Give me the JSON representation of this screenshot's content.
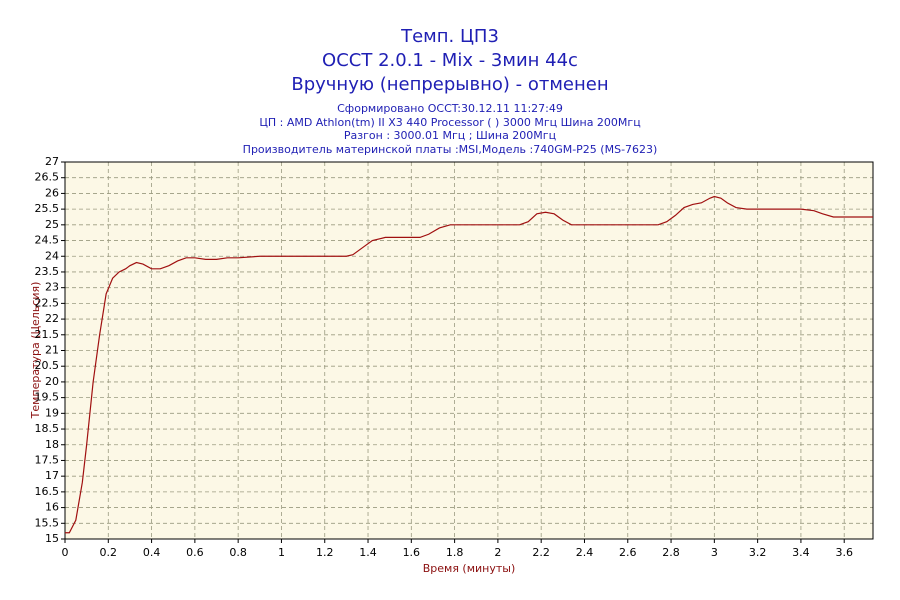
{
  "chart_data": {
    "type": "line",
    "title": [
      "Темп. ЦП3",
      "OCCT 2.0.1 - Mix - 3мин 44с",
      "Вручную (непрерывно) - отменен"
    ],
    "subtitle": [
      "Сформировано OCCT:30.12.11 11:27:49",
      "ЦП : AMD Athlon(tm) II X3 440 Processor (  ) 3000 Мгц Шина 200Мгц",
      "Разгон : 3000.01 Мгц ; Шина 200Мгц",
      "Производитель материнской платы :MSI,Модель :740GM-P25 (MS-7623)"
    ],
    "x_label": "Время (минуты)",
    "y_label": "Температура (Цельсия)",
    "x": [
      0,
      0.02,
      0.05,
      0.08,
      0.1,
      0.13,
      0.16,
      0.19,
      0.22,
      0.25,
      0.28,
      0.3,
      0.33,
      0.36,
      0.4,
      0.44,
      0.48,
      0.52,
      0.56,
      0.6,
      0.65,
      0.7,
      0.75,
      0.8,
      0.9,
      1.0,
      1.1,
      1.2,
      1.3,
      1.33,
      1.38,
      1.42,
      1.48,
      1.55,
      1.6,
      1.64,
      1.68,
      1.73,
      1.78,
      1.85,
      2.0,
      2.1,
      2.14,
      2.18,
      2.22,
      2.26,
      2.3,
      2.34,
      2.4,
      2.6,
      2.74,
      2.78,
      2.82,
      2.86,
      2.9,
      2.94,
      2.98,
      3.0,
      3.03,
      3.06,
      3.1,
      3.15,
      3.3,
      3.4,
      3.46,
      3.5,
      3.55,
      3.6,
      3.733
    ],
    "values": [
      15.2,
      15.2,
      15.6,
      16.8,
      18,
      20,
      21.5,
      22.8,
      23.3,
      23.5,
      23.6,
      23.7,
      23.8,
      23.75,
      23.6,
      23.6,
      23.7,
      23.85,
      23.95,
      23.95,
      23.9,
      23.9,
      23.95,
      23.95,
      24,
      24,
      24,
      24,
      24,
      24.05,
      24.3,
      24.5,
      24.6,
      24.6,
      24.6,
      24.6,
      24.7,
      24.9,
      25,
      25,
      25,
      25,
      25.1,
      25.35,
      25.4,
      25.35,
      25.15,
      25,
      25,
      25,
      25,
      25.1,
      25.3,
      25.55,
      25.65,
      25.7,
      25.85,
      25.9,
      25.85,
      25.7,
      25.55,
      25.5,
      25.5,
      25.5,
      25.45,
      25.35,
      25.25,
      25.25,
      25.25
    ],
    "color": "#a01010",
    "xlim": [
      0,
      3.733
    ],
    "ylim": [
      15,
      27
    ],
    "xticks": [
      0,
      0.2,
      0.4,
      0.6,
      0.8,
      1,
      1.2,
      1.4,
      1.6,
      1.8,
      2,
      2.2,
      2.4,
      2.6,
      2.8,
      3,
      3.2,
      3.4,
      3.6
    ],
    "yticks": [
      15,
      15.5,
      16,
      16.5,
      17,
      17.5,
      18,
      18.5,
      19,
      19.5,
      20,
      20.5,
      21,
      21.5,
      22,
      22.5,
      23,
      23.5,
      24,
      24.5,
      25,
      25.5,
      26,
      26.5,
      27
    ],
    "grid": true
  }
}
